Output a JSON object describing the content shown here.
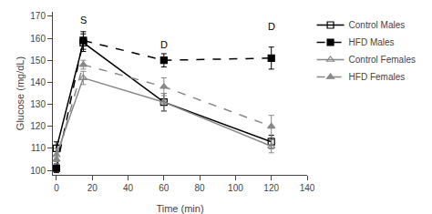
{
  "chart_data": {
    "type": "line",
    "x_label": "Time (min)",
    "y_label": "Glucose (mg/dL)",
    "x": [
      0,
      15,
      60,
      120
    ],
    "series": [
      {
        "name": "Control Males",
        "color": "#000000",
        "marker": "square-open",
        "line_style": "solid",
        "values": [
          110,
          158,
          131,
          113
        ],
        "errors": [
          3,
          4,
          4,
          3
        ]
      },
      {
        "name": "HFD Males",
        "color": "#000000",
        "marker": "square",
        "line_style": "dashed",
        "values": [
          101,
          159,
          150,
          151
        ],
        "errors": [
          2,
          4,
          3,
          5
        ]
      },
      {
        "name": "Control Females",
        "color": "#888888",
        "marker": "triangle-up-open",
        "line_style": "solid",
        "values": [
          107,
          142,
          131,
          111
        ],
        "errors": [
          3,
          3,
          4,
          3
        ]
      },
      {
        "name": "HFD Females",
        "color": "#888888",
        "marker": "triangle-up",
        "line_style": "dashed",
        "values": [
          105,
          148,
          138,
          120
        ],
        "errors": [
          2,
          2,
          4,
          5
        ]
      }
    ],
    "xlim": [
      -2,
      140
    ],
    "ylim": [
      98,
      172
    ],
    "xticks": [
      0,
      20,
      40,
      60,
      80,
      100,
      120,
      140
    ],
    "yticks": [
      100,
      110,
      120,
      130,
      140,
      150,
      160,
      170
    ],
    "annotations": [
      {
        "text": "S",
        "x": 15,
        "y": 165
      },
      {
        "text": "D",
        "x": 60,
        "y": 154
      },
      {
        "text": "D",
        "x": 120,
        "y": 162
      }
    ],
    "grid": false,
    "legend": "right"
  }
}
